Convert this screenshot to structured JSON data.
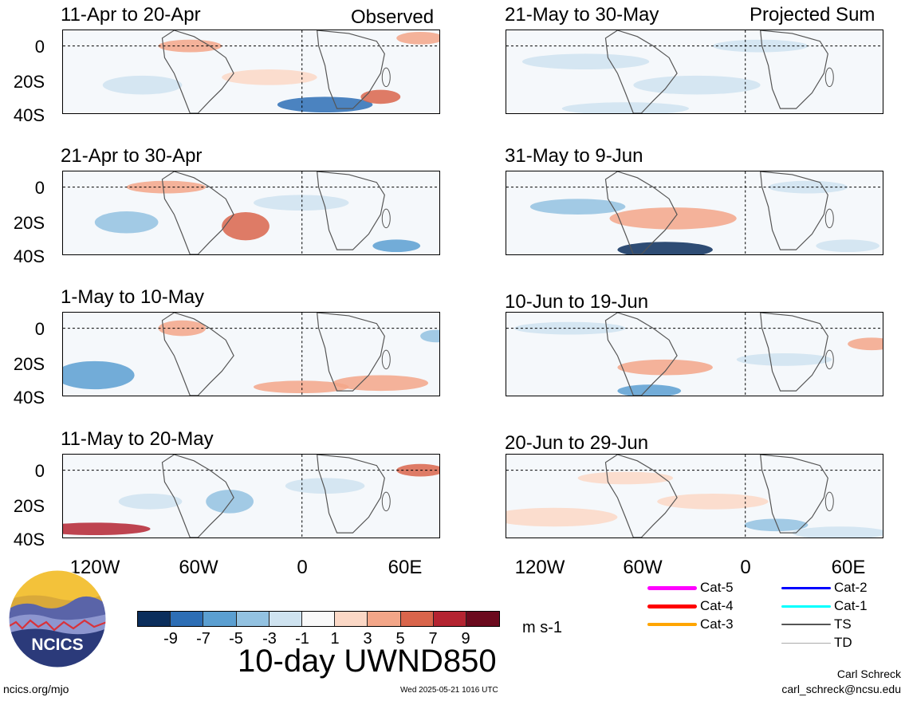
{
  "panels_left_header": "Observed",
  "panels_right_header": "Projected Sum",
  "panels": [
    {
      "title": "11-Apr to 20-Apr"
    },
    {
      "title": "21-Apr to 30-Apr"
    },
    {
      "title": "1-May to 10-May"
    },
    {
      "title": "11-May to 20-May"
    },
    {
      "title": "21-May to 30-May"
    },
    {
      "title": "31-May to 9-Jun"
    },
    {
      "title": "10-Jun to 19-Jun"
    },
    {
      "title": "20-Jun to 29-Jun"
    }
  ],
  "lat_labels": [
    "0",
    "20S",
    "40S"
  ],
  "lon_labels": [
    "120W",
    "60W",
    "0",
    "60E"
  ],
  "colorbar": {
    "colors": [
      "#0b2e5c",
      "#2d6eb5",
      "#5b9fd1",
      "#93c2e1",
      "#cfe3f0",
      "#f9f9f9",
      "#fbd8c6",
      "#f3a688",
      "#d9654b",
      "#b42431",
      "#6b0a1e"
    ],
    "ticks": [
      "-9",
      "-7",
      "-5",
      "-3",
      "-1",
      "1",
      "3",
      "5",
      "7",
      "9"
    ],
    "units": "m s-1"
  },
  "main_title": "10-day UWND850",
  "storm_legend": [
    {
      "label": "Cat-5",
      "color": "#ff00ff"
    },
    {
      "label": "Cat-4",
      "color": "#ff0000"
    },
    {
      "label": "Cat-3",
      "color": "#ffa500"
    },
    {
      "label": "Cat-2",
      "color": "#0000ff"
    },
    {
      "label": "Cat-1",
      "color": "#00ffff"
    },
    {
      "label": "TS",
      "color": "#555555"
    },
    {
      "label": "TD",
      "color": "#aaaaaa"
    }
  ],
  "logo_text": "NCICS",
  "footer": {
    "url": "ncics.org/mjo",
    "timestamp": "Wed 2025-05-21 1016 UTC",
    "author": "Carl Schreck",
    "email": "carl_schreck@ncsu.edu"
  }
}
